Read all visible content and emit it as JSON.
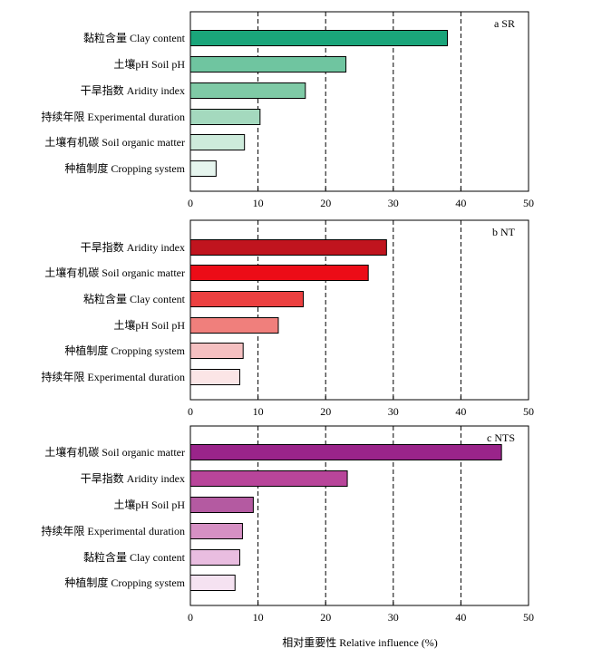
{
  "chart_data": [
    {
      "type": "bar",
      "orientation": "horizontal",
      "panel_label": "a SR",
      "categories": [
        "黏粒含量 Clay content",
        "土壤pH Soil pH",
        "干旱指数 Aridity index",
        "持续年限 Experimental duration",
        "土壤有机碳 Soil organic matter",
        "种植制度 Cropping system"
      ],
      "values": [
        38,
        23,
        17,
        10.3,
        8,
        3.8
      ],
      "colors": [
        "#1aa57a",
        "#6fc5a0",
        "#7fcaa6",
        "#a4d9be",
        "#cdebdb",
        "#e6f5ee"
      ],
      "xlim": [
        0,
        50
      ],
      "xticks": [
        0,
        10,
        20,
        30,
        40,
        50
      ],
      "xticks_labels": [
        "0",
        "10",
        "20",
        "30",
        "40",
        "50"
      ],
      "gridlines": [
        10,
        20,
        30,
        40
      ],
      "grid": "dashed vertical"
    },
    {
      "type": "bar",
      "orientation": "horizontal",
      "panel_label": "b NT",
      "categories": [
        "干旱指数 Aridity index",
        "土壤有机碳 Soil organic matter",
        "粘粒含量 Clay content",
        "土壤pH Soil pH",
        "种植制度 Cropping system",
        "持续年限 Experimental duration"
      ],
      "values": [
        29,
        26.3,
        16.7,
        13,
        7.8,
        7.3
      ],
      "colors": [
        "#c0141e",
        "#ec0c17",
        "#ec4040",
        "#f07f7c",
        "#f5c0c1",
        "#fbe5e6"
      ],
      "xlim": [
        0,
        50
      ],
      "xticks": [
        0,
        10,
        20,
        30,
        40,
        50
      ],
      "xticks_labels": [
        "0",
        "10",
        "20",
        "30",
        "40",
        "50"
      ],
      "gridlines": [
        10,
        20,
        30,
        40
      ],
      "grid": "dashed vertical"
    },
    {
      "type": "bar",
      "orientation": "horizontal",
      "panel_label": "c NTS",
      "categories": [
        "土壤有机碳 Soil organic matter",
        "干旱指数 Aridity index",
        "土壤pH Soil pH",
        "持续年限 Experimental duration",
        "黏粒含量 Clay content",
        "种植制度 Cropping system"
      ],
      "values": [
        46,
        23.2,
        9.3,
        7.7,
        7.3,
        6.6
      ],
      "colors": [
        "#9a248a",
        "#b8459a",
        "#b45aa1",
        "#d690c4",
        "#e9bde0",
        "#f5e2f1"
      ],
      "xlim": [
        0,
        50
      ],
      "xticks": [
        0,
        10,
        20,
        30,
        40,
        50
      ],
      "xticks_labels": [
        "0",
        "10",
        "20",
        "30",
        "40",
        "50"
      ],
      "gridlines": [
        10,
        20,
        30,
        40
      ],
      "grid": "dashed vertical",
      "xlabel": "相对重要性 Relative influence (%)"
    }
  ]
}
